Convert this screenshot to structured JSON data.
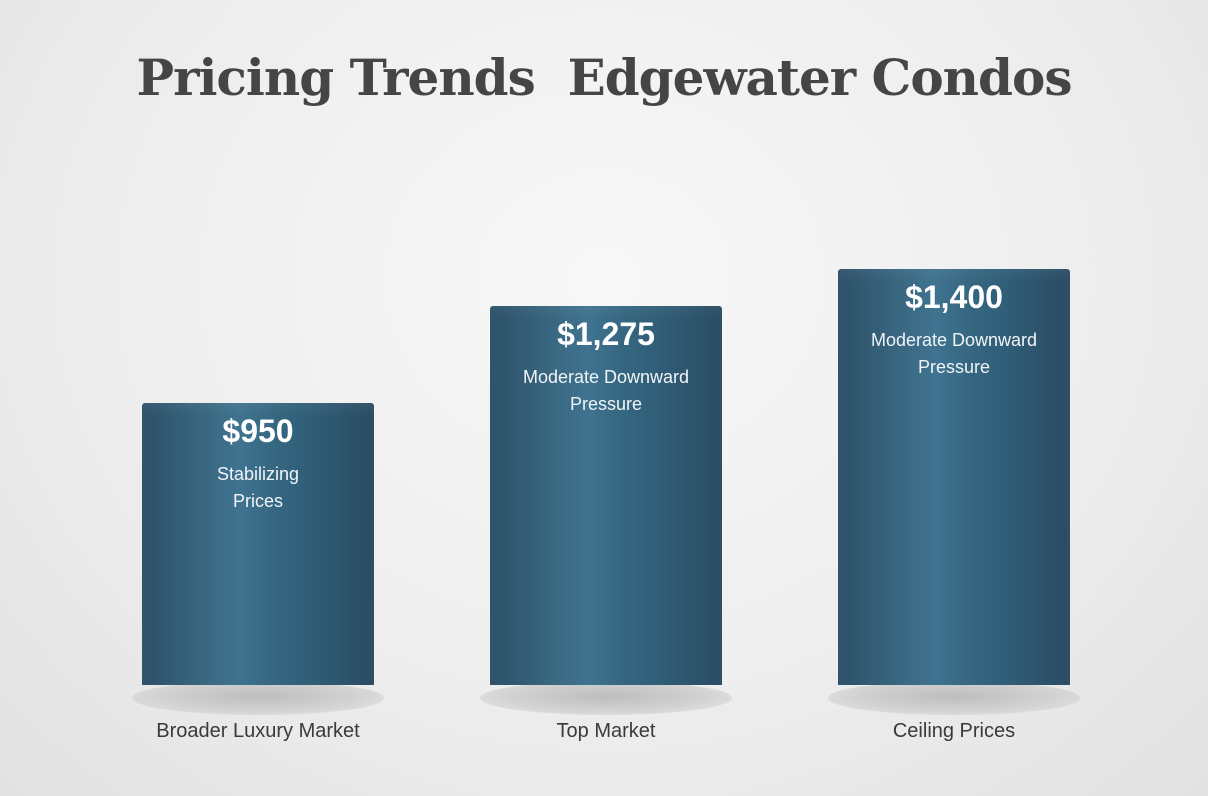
{
  "chart_data": {
    "type": "bar",
    "title": "Pricing Trends  Edgewater Condos",
    "categories": [
      "Broader Luxury Market",
      "Top Market",
      "Ceiling Prices"
    ],
    "values": [
      950,
      1275,
      1400
    ],
    "value_labels": [
      "$950",
      "$1,275",
      "$1,400"
    ],
    "descriptions": [
      [
        "Stabilizing",
        "Prices"
      ],
      [
        "Moderate Downward",
        "Pressure"
      ],
      [
        "Moderate Downward",
        "Pressure"
      ]
    ],
    "ylim": [
      0,
      1400
    ],
    "grid": false,
    "legend": "none",
    "colors": {
      "bar": "#2f5a74",
      "title": "#454545",
      "label": "#3a3a3a"
    }
  }
}
